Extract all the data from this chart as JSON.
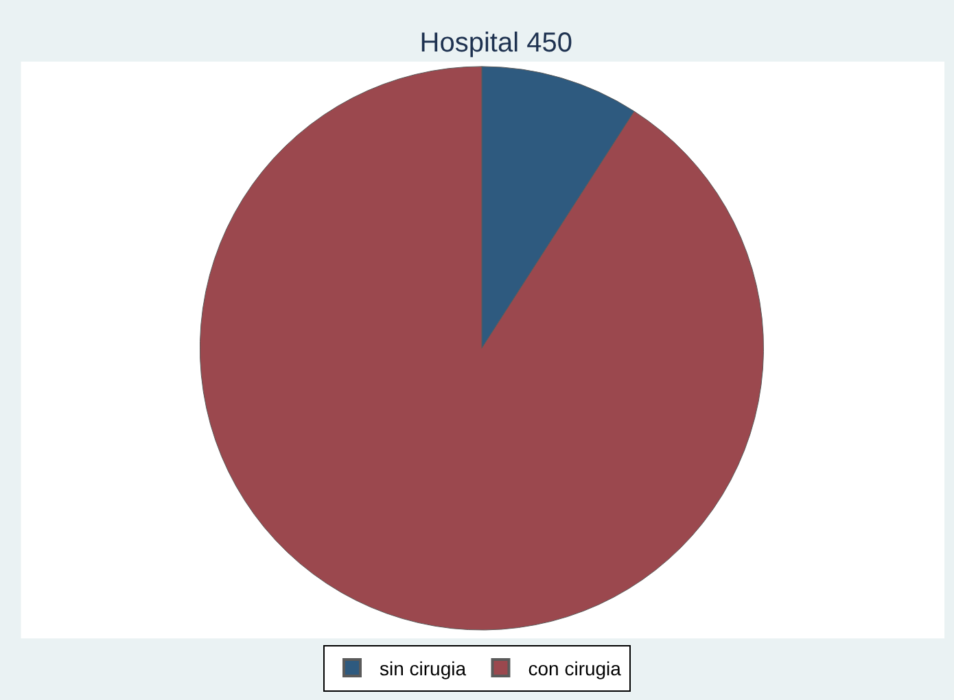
{
  "chart_data": {
    "type": "pie",
    "title": "Hospital 450",
    "categories": [
      "sin cirugia",
      "con cirugia"
    ],
    "values": [
      9.1,
      90.9
    ],
    "colors": [
      "#2e5a7f",
      "#9b484e"
    ],
    "legend": "bottom"
  }
}
